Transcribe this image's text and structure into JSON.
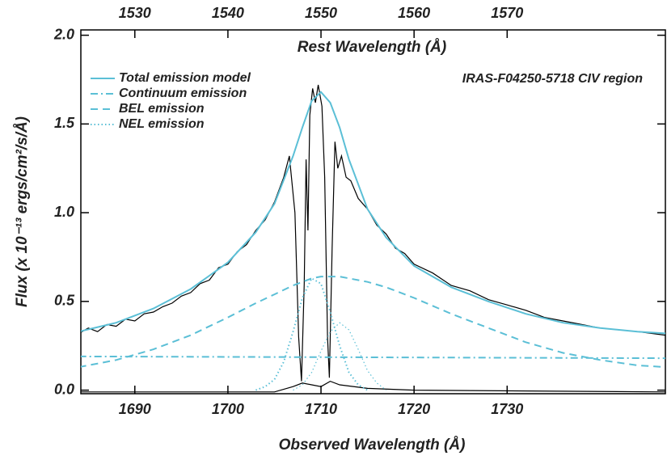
{
  "chart_data": {
    "type": "line",
    "x_label": "Observed Wavelength (Å)",
    "x2_label": "Rest Wavelength (Å)",
    "y_label": "Flux (x 10⁻¹³ ergs/cm²/s/Å)",
    "annotation": "IRAS-F04250-5718 CIV region",
    "xlim": [
      1684.2,
      1747.0
    ],
    "xticks": [
      1690,
      1700,
      1710,
      1720,
      1730
    ],
    "x2lim": [
      1524.2,
      1587.0
    ],
    "x2ticks": [
      1530,
      1540,
      1550,
      1560,
      1570
    ],
    "ylim": [
      -0.02,
      2.03
    ],
    "yticks": [
      {
        "value": 0,
        "label": "0.0"
      },
      0.5,
      {
        "value": 1,
        "label": "1.0"
      },
      1.5,
      {
        "value": 2,
        "label": "2.0"
      }
    ],
    "legend": "upper left",
    "series": [
      {
        "color": "#000000",
        "dash": "solid",
        "x": [
          1684,
          1685,
          1686,
          1687,
          1688,
          1689,
          1690,
          1691,
          1692,
          1693,
          1694,
          1695,
          1696,
          1697,
          1698,
          1699,
          1700,
          1701,
          1702,
          1703,
          1704,
          1705,
          1706,
          1706.6,
          1707.2,
          1707.6,
          1707.9,
          1708.2,
          1708.4,
          1708.6,
          1708.8,
          1709.1,
          1709.4,
          1709.7,
          1710.1,
          1710.4,
          1710.7,
          1710.9,
          1711.2,
          1711.5,
          1711.8,
          1712.2,
          1712.7,
          1713.2,
          1714,
          1715,
          1716,
          1717,
          1718,
          1719,
          1720,
          1722,
          1724,
          1726,
          1728,
          1730,
          1732,
          1734,
          1736,
          1738,
          1740,
          1742,
          1744,
          1747
        ],
        "values": [
          0.32,
          0.35,
          0.33,
          0.37,
          0.36,
          0.4,
          0.39,
          0.43,
          0.44,
          0.47,
          0.49,
          0.53,
          0.55,
          0.6,
          0.62,
          0.69,
          0.71,
          0.78,
          0.82,
          0.9,
          0.96,
          1.06,
          1.2,
          1.32,
          1.0,
          0.3,
          0.05,
          0.6,
          1.3,
          0.9,
          1.55,
          1.7,
          1.62,
          1.72,
          1.6,
          1.2,
          0.3,
          0.07,
          0.8,
          1.4,
          1.25,
          1.32,
          1.2,
          1.18,
          1.08,
          1.02,
          0.93,
          0.88,
          0.8,
          0.77,
          0.71,
          0.66,
          0.59,
          0.56,
          0.51,
          0.48,
          0.45,
          0.41,
          0.39,
          0.37,
          0.35,
          0.34,
          0.33,
          0.31
        ]
      },
      {
        "color": "#000000",
        "dash": "solid",
        "x": [
          1684,
          1705,
          1707,
          1708,
          1709,
          1710,
          1711,
          1712,
          1715,
          1720,
          1747
        ],
        "values": [
          -0.01,
          -0.01,
          0.02,
          0.04,
          0.03,
          0.02,
          0.05,
          0.03,
          0.01,
          0,
          -0.01
        ]
      },
      {
        "name": "Total emission model",
        "color": "#5bbfd6",
        "dash": "solid",
        "x": [
          1684,
          1688,
          1692,
          1696,
          1700,
          1703,
          1705,
          1707,
          1708,
          1709,
          1710,
          1711,
          1712,
          1713,
          1715,
          1717,
          1720,
          1724,
          1728,
          1732,
          1736,
          1740,
          1744,
          1747
        ],
        "values": [
          0.33,
          0.38,
          0.46,
          0.57,
          0.72,
          0.89,
          1.05,
          1.32,
          1.48,
          1.63,
          1.68,
          1.62,
          1.48,
          1.3,
          1.02,
          0.86,
          0.7,
          0.58,
          0.5,
          0.43,
          0.38,
          0.35,
          0.33,
          0.32
        ]
      },
      {
        "name": "Continuum emission",
        "color": "#5bbfd6",
        "dash": "dashdot",
        "x": [
          1684,
          1747
        ],
        "values": [
          0.19,
          0.18
        ]
      },
      {
        "name": "BEL emission",
        "color": "#5bbfd6",
        "dash": "dashed",
        "x": [
          1684,
          1688,
          1692,
          1696,
          1700,
          1703,
          1705,
          1707,
          1708,
          1709,
          1710,
          1711,
          1712,
          1713,
          1715,
          1717,
          1720,
          1724,
          1728,
          1732,
          1736,
          1740,
          1744,
          1747
        ],
        "values": [
          0.13,
          0.17,
          0.23,
          0.31,
          0.41,
          0.49,
          0.54,
          0.59,
          0.61,
          0.63,
          0.64,
          0.64,
          0.64,
          0.63,
          0.61,
          0.58,
          0.52,
          0.43,
          0.35,
          0.27,
          0.21,
          0.17,
          0.14,
          0.13
        ]
      },
      {
        "name": "NEL emission",
        "color": "#5bbfd6",
        "dash": "dotted",
        "x": [
          1703,
          1704,
          1705,
          1706,
          1707,
          1708,
          1709,
          1710,
          1711,
          1712,
          1713,
          1714,
          1715
        ],
        "values": [
          0,
          0.02,
          0.06,
          0.16,
          0.33,
          0.52,
          0.63,
          0.6,
          0.44,
          0.25,
          0.1,
          0.03,
          0
        ]
      },
      {
        "color": "#5bbfd6",
        "dash": "dotted",
        "x": [
          1707,
          1708,
          1709,
          1710,
          1711,
          1712,
          1713,
          1714,
          1715,
          1716,
          1717
        ],
        "values": [
          0,
          0.03,
          0.1,
          0.22,
          0.33,
          0.38,
          0.34,
          0.23,
          0.11,
          0.04,
          0
        ]
      }
    ]
  }
}
